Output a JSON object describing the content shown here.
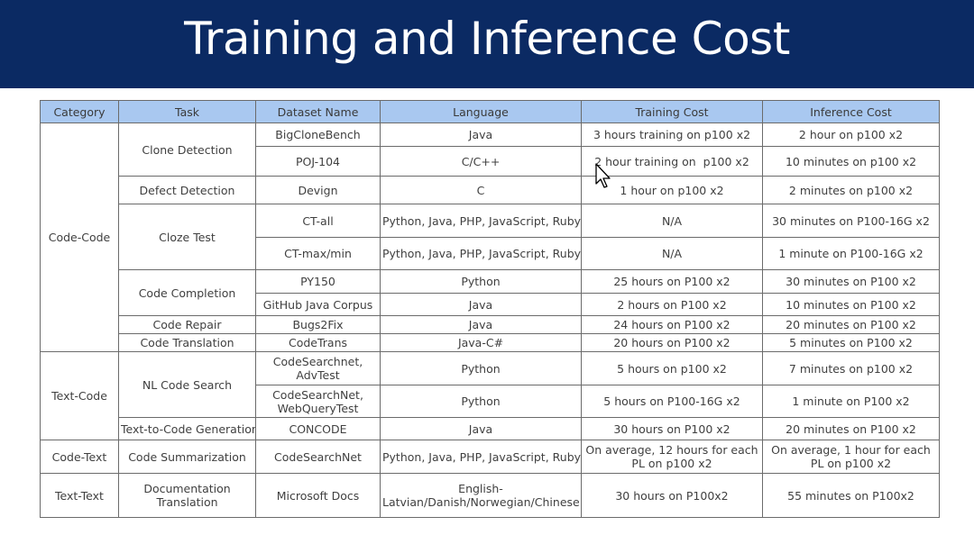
{
  "title": "Training and Inference Cost",
  "colors": {
    "banner": "#0b2a63",
    "header_fill": "#a9c8f0"
  },
  "table": {
    "headers": [
      "Category",
      "Task",
      "Dataset Name",
      "Language",
      "Training Cost",
      "Inference Cost"
    ],
    "categories": [
      "Code-Code",
      "Text-Code",
      "Code-Text",
      "Text-Text"
    ],
    "tasks": {
      "clone_detection": "Clone Detection",
      "defect_detection": "Defect Detection",
      "cloze_test": "Cloze Test",
      "code_completion": "Code Completion",
      "code_repair": "Code Repair",
      "code_translation": "Code Translation",
      "nl_code_search": "NL Code Search",
      "text_to_code": "Text-to-Code Generation",
      "code_summarization": "Code Summarization",
      "doc_translation": "Documentation Translation"
    },
    "rows": [
      {
        "dataset": "BigCloneBench",
        "language": "Java",
        "training": "3 hours training on p100 x2",
        "inference": "2 hour on p100 x2"
      },
      {
        "dataset": "POJ-104",
        "language": "C/C++",
        "training": "2 hour training on  p100 x2",
        "inference": "10 minutes on p100 x2"
      },
      {
        "dataset": "Devign",
        "language": "C",
        "training": "1 hour on p100 x2",
        "inference": "2 minutes on p100 x2"
      },
      {
        "dataset": "CT-all",
        "language": "Python, Java, PHP, JavaScript, Ruby, Go",
        "training": "N/A",
        "inference": "30 minutes on P100-16G x2"
      },
      {
        "dataset": "CT-max/min",
        "language": "Python, Java, PHP, JavaScript, Ruby, Go",
        "training": "N/A",
        "inference": "1 minute on P100-16G x2"
      },
      {
        "dataset": "PY150",
        "language": "Python",
        "training": "25 hours on P100 x2",
        "inference": "30 minutes on P100 x2"
      },
      {
        "dataset": "GitHub Java Corpus",
        "language": "Java",
        "training": "2 hours on P100 x2",
        "inference": "10 minutes on P100 x2"
      },
      {
        "dataset": "Bugs2Fix",
        "language": "Java",
        "training": "24 hours on P100 x2",
        "inference": "20 minutes on P100 x2"
      },
      {
        "dataset": "CodeTrans",
        "language": "Java-C#",
        "training": "20 hours on P100 x2",
        "inference": "5 minutes on P100 x2"
      },
      {
        "dataset": "CodeSearchnet, AdvTest",
        "language": "Python",
        "training": "5 hours on p100 x2",
        "inference": "7 minutes on p100 x2"
      },
      {
        "dataset": "CodeSearchNet, WebQueryTest",
        "language": "Python",
        "training": "5 hours on P100-16G x2",
        "inference": "1 minute on P100 x2"
      },
      {
        "dataset": "CONCODE",
        "language": "Java",
        "training": "30 hours on P100 x2",
        "inference": "20 minutes on P100 x2"
      },
      {
        "dataset": "CodeSearchNet",
        "language": "Python, Java, PHP, JavaScript, Ruby, Go",
        "training": "On average, 12 hours for each PL on p100 x2",
        "inference": "On average, 1 hour for each PL on p100 x2"
      },
      {
        "dataset": "Microsoft Docs",
        "language": "English-Latvian/Danish/Norwegian/Chinese",
        "training": "30 hours on P100x2",
        "inference": "55 minutes on P100x2"
      }
    ]
  },
  "cursor_icon": "mouse-pointer-icon"
}
